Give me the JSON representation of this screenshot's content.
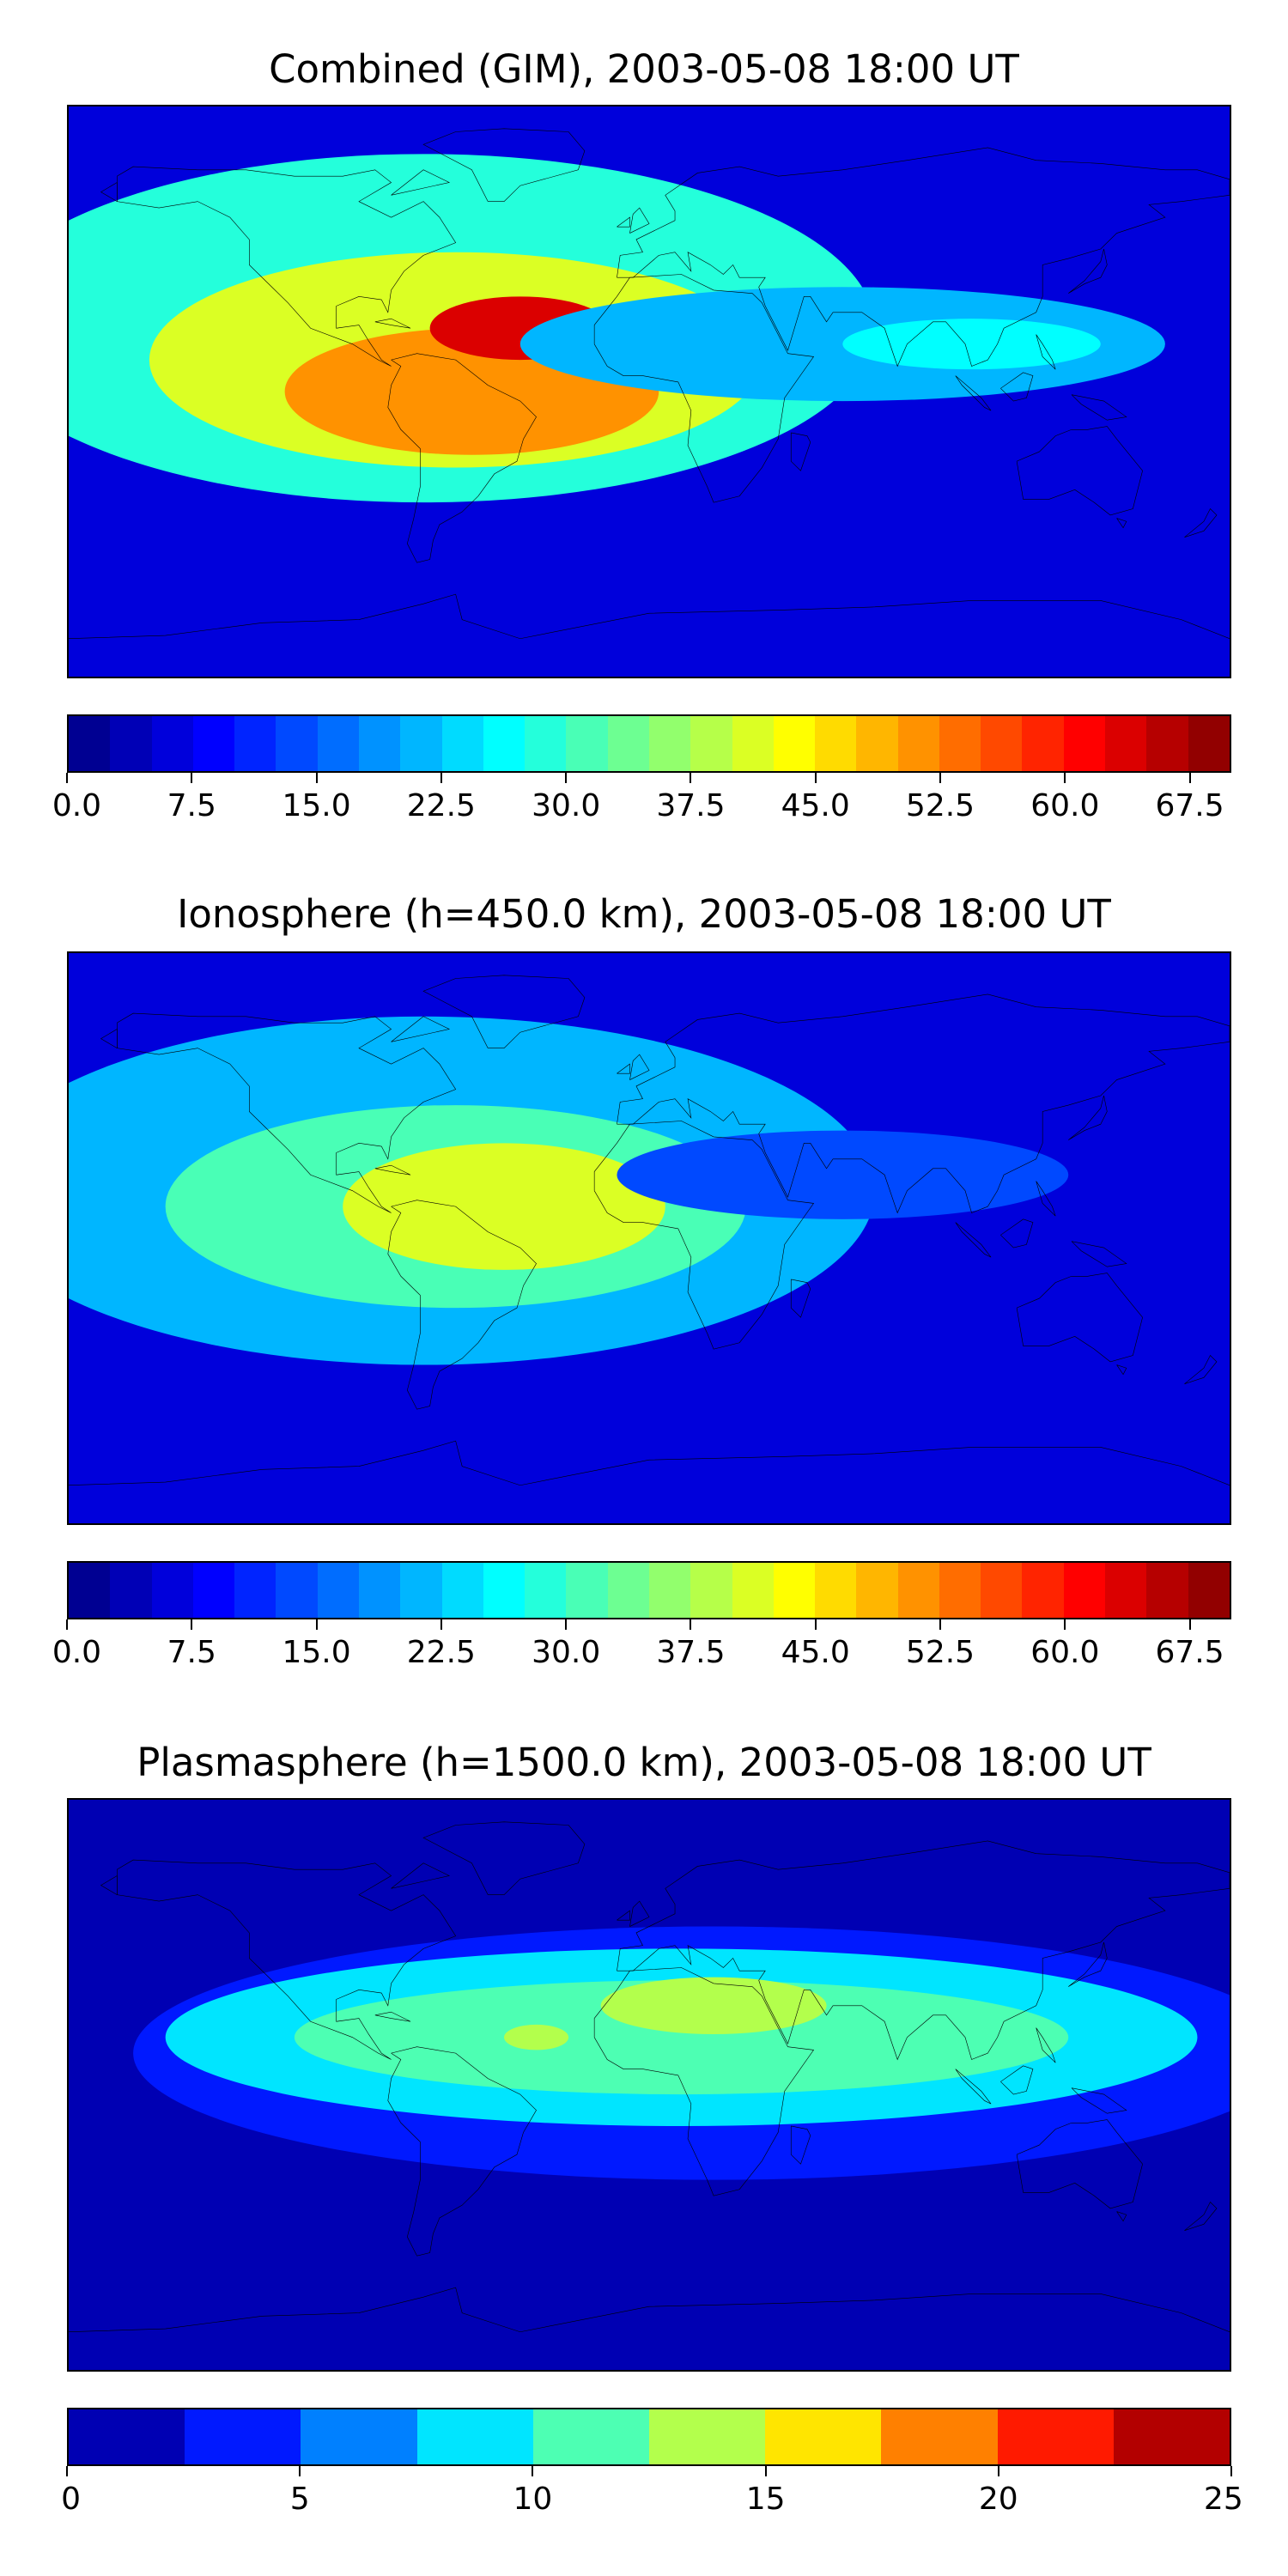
{
  "chart_data": [
    {
      "type": "heatmap",
      "title": "Combined (GIM), 2003-05-08 18:00 UT",
      "colorbar": {
        "min": 0,
        "max": 70,
        "levels": 28,
        "tick_values": [
          0,
          7.5,
          15,
          22.5,
          30,
          37.5,
          45,
          52.5,
          60,
          67.5
        ],
        "tick_labels": [
          "0.0",
          "7.5",
          "15.0",
          "22.5",
          "30.0",
          "37.5",
          "45.0",
          "52.5",
          "60.0",
          "67.5"
        ]
      },
      "background_value": 5,
      "features": [
        {
          "lon": -70,
          "lat": 20,
          "rx": 140,
          "ry": 55,
          "value": 28
        },
        {
          "lon": -60,
          "lat": 10,
          "rx": 95,
          "ry": 34,
          "value": 40
        },
        {
          "lon": -55,
          "lat": 0,
          "rx": 58,
          "ry": 20,
          "value": 52
        },
        {
          "lon": -40,
          "lat": 20,
          "rx": 28,
          "ry": 10,
          "value": 63
        },
        {
          "lon": 60,
          "lat": 15,
          "rx": 100,
          "ry": 18,
          "value": 20
        },
        {
          "lon": 100,
          "lat": 15,
          "rx": 40,
          "ry": 8,
          "value": 27
        }
      ]
    },
    {
      "type": "heatmap",
      "title": "Ionosphere  (h=450.0 km), 2003-05-08 18:00 UT",
      "colorbar": {
        "min": 0,
        "max": 70,
        "levels": 28,
        "tick_values": [
          0,
          7.5,
          15,
          22.5,
          30,
          37.5,
          45,
          52.5,
          60,
          67.5
        ],
        "tick_labels": [
          "0.0",
          "7.5",
          "15.0",
          "22.5",
          "30.0",
          "37.5",
          "45.0",
          "52.5",
          "60.0",
          "67.5"
        ]
      },
      "background_value": 6,
      "features": [
        {
          "lon": -70,
          "lat": 15,
          "rx": 140,
          "ry": 55,
          "value": 20
        },
        {
          "lon": -60,
          "lat": 10,
          "rx": 90,
          "ry": 32,
          "value": 32
        },
        {
          "lon": -45,
          "lat": 10,
          "rx": 50,
          "ry": 20,
          "value": 42
        },
        {
          "lon": 60,
          "lat": 20,
          "rx": 70,
          "ry": 14,
          "value": 13
        }
      ]
    },
    {
      "type": "heatmap",
      "title": "Plasmasphere (h=1500.0 km), 2003-05-08 18:00 UT",
      "colorbar": {
        "min": 0,
        "max": 25,
        "levels": 10,
        "tick_values": [
          0,
          5,
          10,
          15,
          20,
          25
        ],
        "tick_labels": [
          "0",
          "5",
          "10",
          "15",
          "20",
          "25"
        ]
      },
      "background_value": 1.5,
      "features": [
        {
          "lon": 20,
          "lat": 10,
          "rx": 180,
          "ry": 40,
          "value": 4.5
        },
        {
          "lon": 10,
          "lat": 15,
          "rx": 160,
          "ry": 28,
          "value": 7.5
        },
        {
          "lon": 10,
          "lat": 15,
          "rx": 120,
          "ry": 18,
          "value": 11
        },
        {
          "lon": 20,
          "lat": 25,
          "rx": 35,
          "ry": 9,
          "value": 14
        },
        {
          "lon": -35,
          "lat": 15,
          "rx": 10,
          "ry": 4,
          "value": 14
        }
      ]
    }
  ]
}
